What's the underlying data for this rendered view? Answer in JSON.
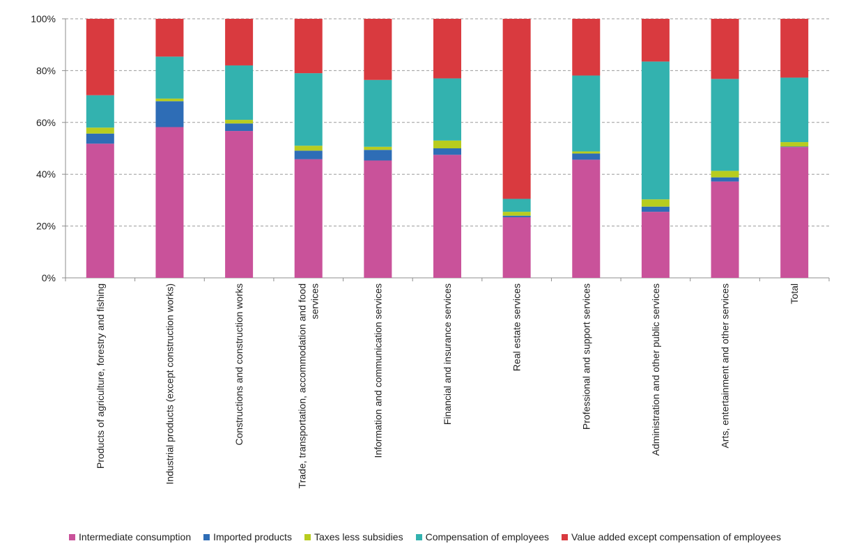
{
  "chart_data": {
    "type": "bar",
    "stacked": true,
    "categories": [
      "Products of agriculture, forestry and fishing",
      "Industrial products (except construction works)",
      "Constructions and construction works",
      "Trade, transportation, accommodation and food services",
      "Information and communication services",
      "Financial and insurance services",
      "Real estate services",
      "Professional and support services",
      "Administration and other public services",
      "Arts, entertainment and other services",
      "Total"
    ],
    "series": [
      {
        "name": "Intermediate consumption",
        "color": "#c9529a",
        "values": [
          51.8,
          58.2,
          56.7,
          45.8,
          45.3,
          47.5,
          23.4,
          45.6,
          25.5,
          37.2,
          50.5
        ]
      },
      {
        "name": "Imported products",
        "color": "#2e6db6",
        "values": [
          3.9,
          10.0,
          2.9,
          3.3,
          4.1,
          2.5,
          0.6,
          2.4,
          2.0,
          1.6,
          0.2
        ]
      },
      {
        "name": "Taxes less subsidies",
        "color": "#b8cc1f",
        "values": [
          2.3,
          1.0,
          1.4,
          1.9,
          1.2,
          3.0,
          1.5,
          0.8,
          2.8,
          2.5,
          1.7
        ]
      },
      {
        "name": "Compensation of employees",
        "color": "#33b2af",
        "values": [
          12.5,
          16.2,
          21.0,
          28.0,
          25.8,
          24.0,
          5.0,
          29.3,
          53.2,
          35.5,
          24.9
        ]
      },
      {
        "name": "Value added except compensation of employees",
        "color": "#d93a3f",
        "values": [
          29.5,
          14.6,
          18.0,
          21.0,
          23.6,
          23.0,
          69.5,
          21.9,
          16.5,
          23.2,
          22.7
        ]
      }
    ],
    "ylim": [
      0,
      100
    ],
    "yticks": [
      "0%",
      "20%",
      "40%",
      "60%",
      "80%",
      "100%"
    ],
    "grid": true,
    "legend_position": "bottom"
  }
}
